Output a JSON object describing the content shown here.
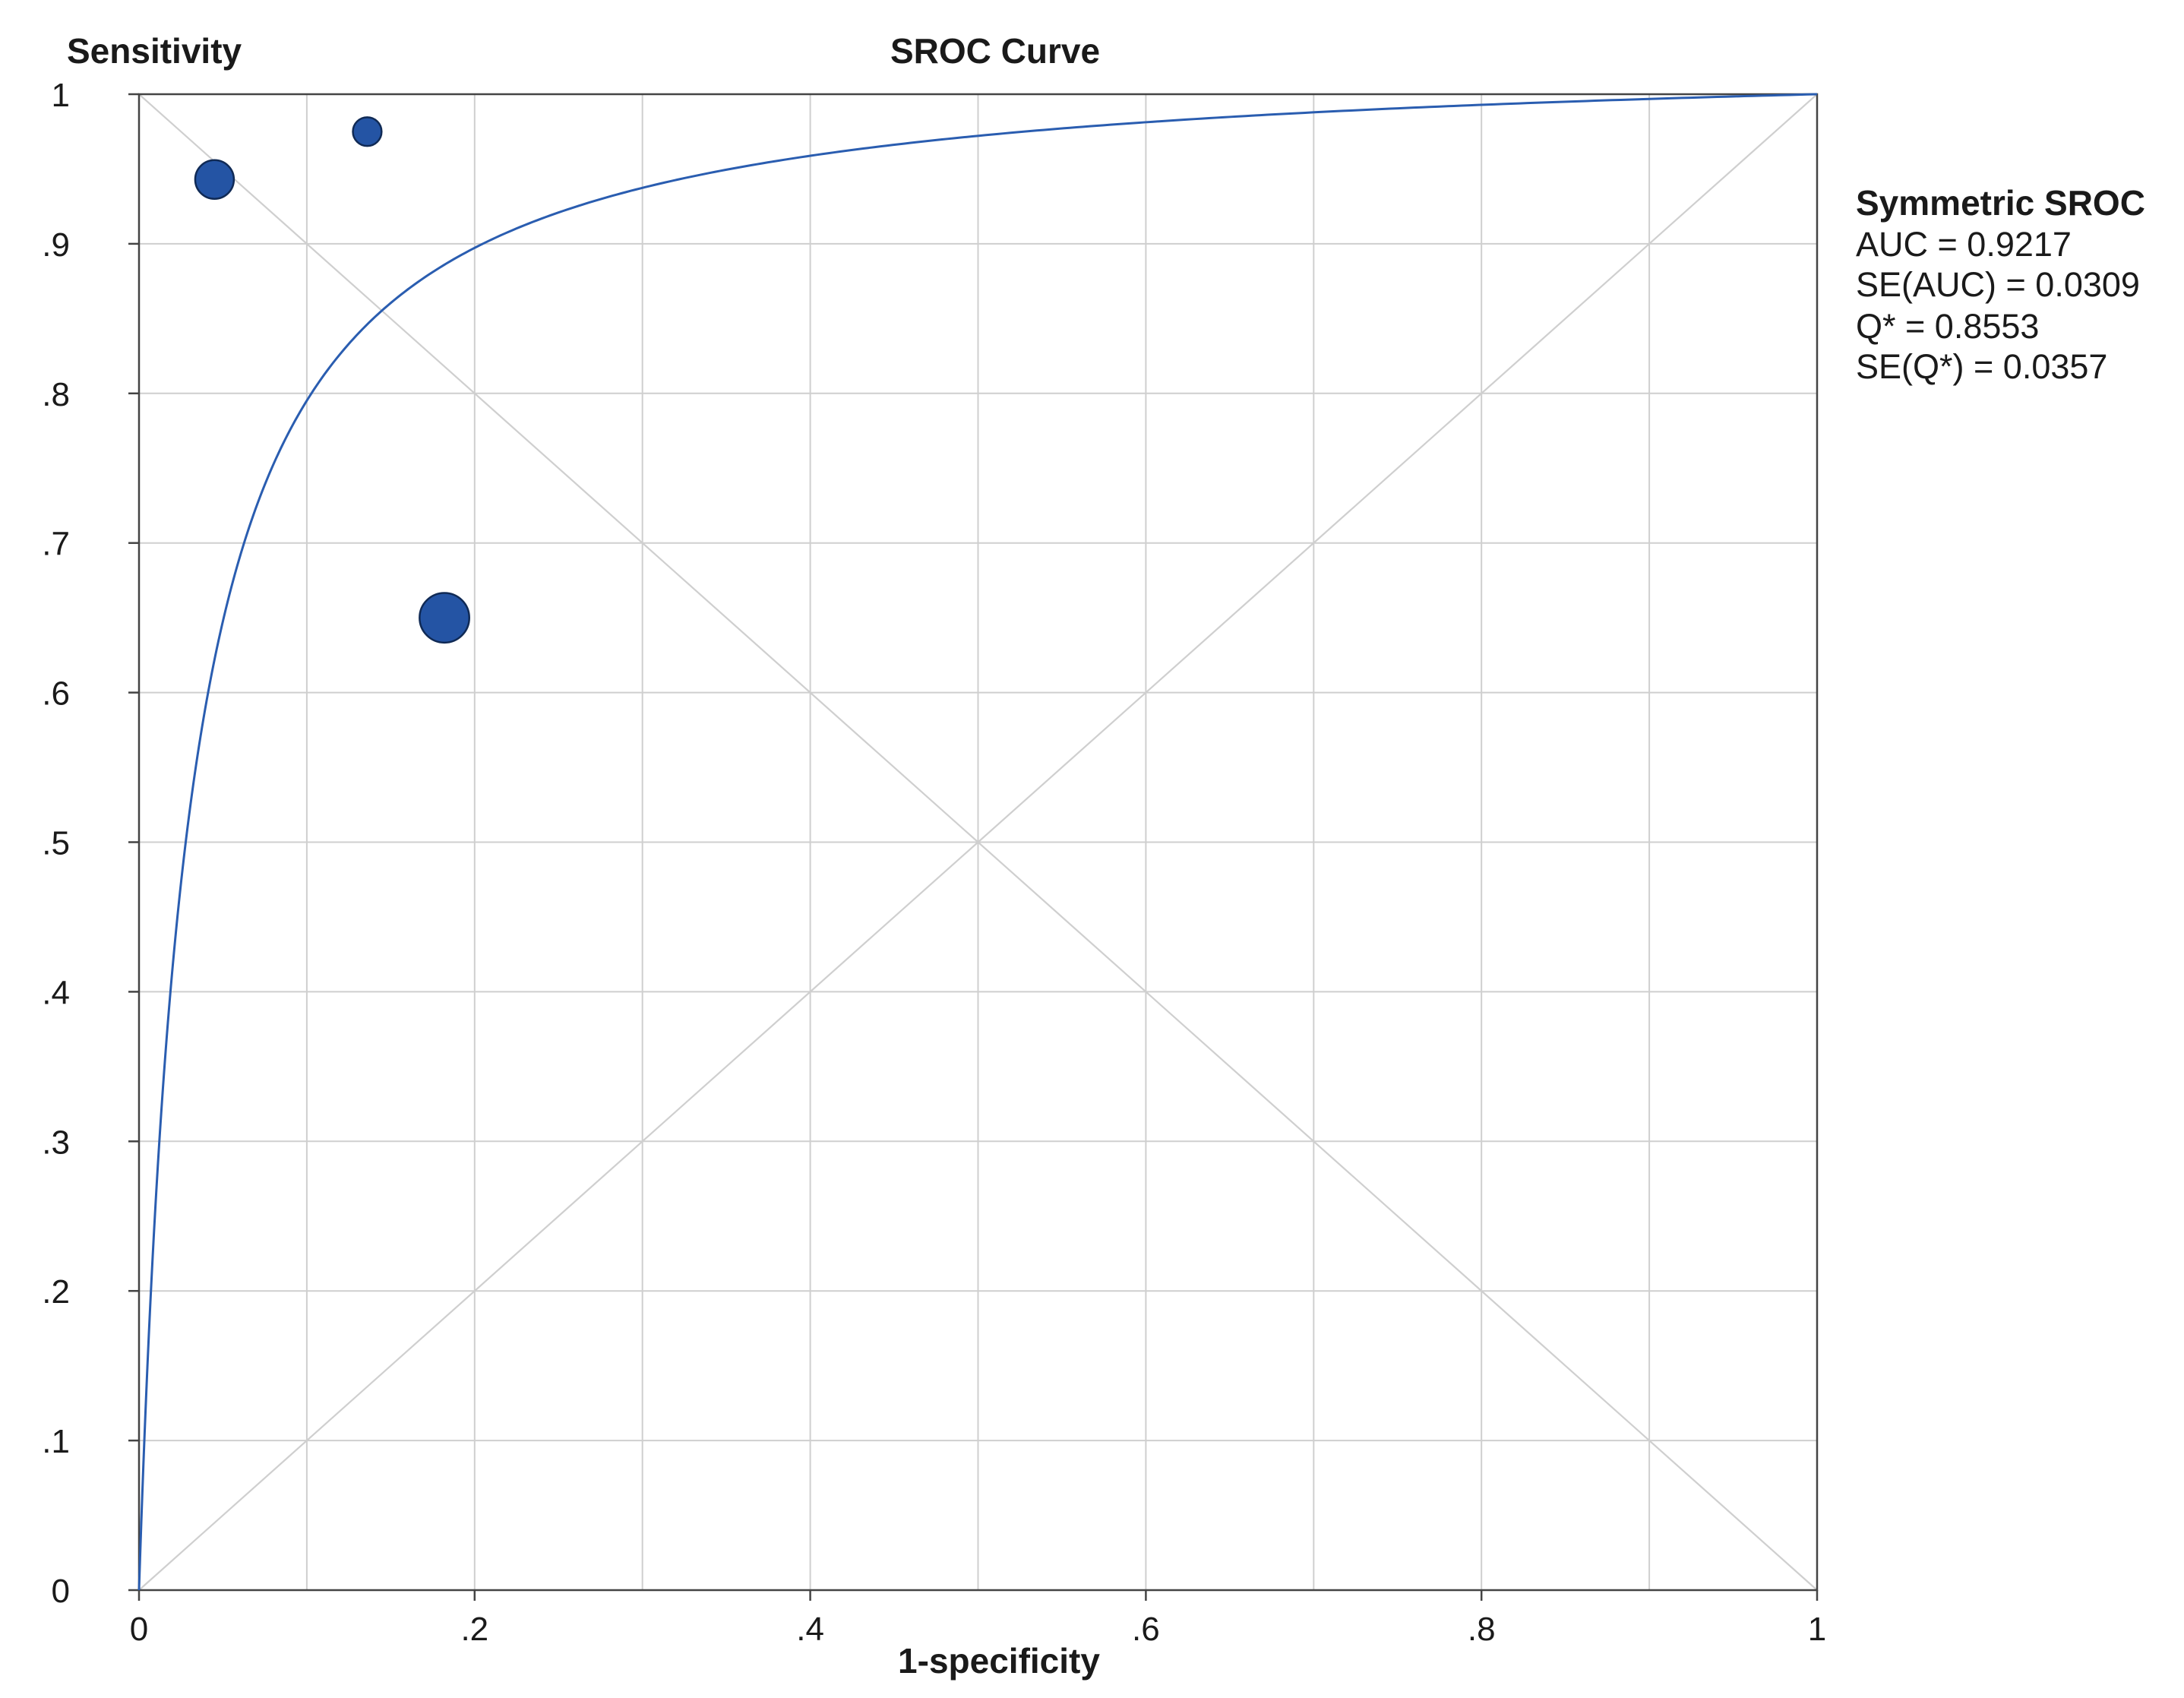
{
  "chart_data": {
    "type": "scatter",
    "title": "SROC Curve",
    "xlabel": "1-specificity",
    "ylabel": "Sensitivity",
    "xlim": [
      0,
      1
    ],
    "ylim": [
      0,
      1
    ],
    "x_ticks": [
      "0",
      ".2",
      ".4",
      ".6",
      ".8",
      "1"
    ],
    "x_tick_values": [
      0,
      0.2,
      0.4,
      0.6,
      0.8,
      1
    ],
    "y_ticks": [
      "0",
      ".1",
      ".2",
      ".3",
      ".4",
      ".5",
      ".6",
      ".7",
      ".8",
      ".9",
      "1"
    ],
    "y_tick_values": [
      0,
      0.1,
      0.2,
      0.3,
      0.4,
      0.5,
      0.6,
      0.7,
      0.8,
      0.9,
      1
    ],
    "grid": true,
    "grid_step_x": 0.1,
    "grid_step_y": 0.1,
    "reference_lines": [
      "diagonal",
      "anti-diagonal"
    ],
    "studies": [
      {
        "x": 0.045,
        "y": 0.943,
        "weight": 2.0
      },
      {
        "x": 0.136,
        "y": 0.975,
        "weight": 1.1
      },
      {
        "x": 0.182,
        "y": 0.65,
        "weight": 3.3
      }
    ],
    "curve": {
      "type": "symmetric-sroc",
      "q_star": 0.8553
    },
    "legend": {
      "title": "Symmetric SROC",
      "lines": [
        "AUC = 0.9217",
        "SE(AUC) = 0.0309",
        "Q* = 0.8553",
        "SE(Q*) = 0.0357"
      ],
      "placement": "right"
    },
    "colors": {
      "curve": "#2a5db0",
      "point_fill": "#2454a4",
      "point_stroke": "#102a55",
      "grid": "#cfcfcf",
      "axis": "#444444"
    }
  }
}
